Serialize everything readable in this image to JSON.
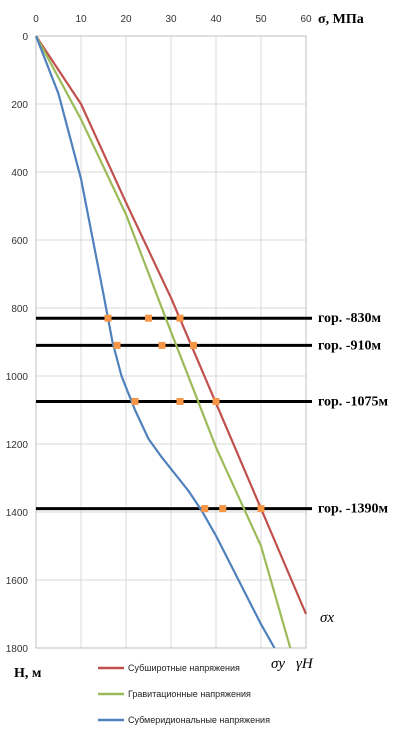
{
  "chart_data": {
    "type": "line",
    "x_axis": {
      "label": "σ, МПа",
      "range": [
        0,
        60
      ],
      "ticks": [
        0,
        10,
        20,
        30,
        40,
        50,
        60
      ],
      "position": "top"
    },
    "y_axis": {
      "label": "H, м",
      "range": [
        0,
        1800
      ],
      "inverted": true,
      "ticks": [
        0,
        200,
        400,
        600,
        800,
        1000,
        1200,
        1400,
        1600,
        1800
      ]
    },
    "grid": true,
    "series": [
      {
        "name": "Субширотные напряжения",
        "curve_label": "σx",
        "color": "#c0504d",
        "points": [
          [
            0,
            0
          ],
          [
            10,
            200
          ],
          [
            20,
            490
          ],
          [
            30,
            770
          ],
          [
            40,
            1080
          ],
          [
            50,
            1390
          ],
          [
            60,
            1700
          ]
        ]
      },
      {
        "name": "Гравитационные напряжения",
        "curve_label": "γH",
        "color": "#9bbb59",
        "points": [
          [
            0,
            0
          ],
          [
            10,
            245
          ],
          [
            20,
            525
          ],
          [
            30,
            870
          ],
          [
            40,
            1210
          ],
          [
            50,
            1500
          ],
          [
            56.5,
            1800
          ]
        ]
      },
      {
        "name": "Субмеридиональные напряжения",
        "curve_label": "σy",
        "color": "#4f81bd",
        "points": [
          [
            0,
            0
          ],
          [
            5,
            170
          ],
          [
            10,
            420
          ],
          [
            15,
            760
          ],
          [
            17,
            900
          ],
          [
            19,
            1000
          ],
          [
            22,
            1100
          ],
          [
            25,
            1185
          ],
          [
            28,
            1240
          ],
          [
            31,
            1290
          ],
          [
            34,
            1340
          ],
          [
            37,
            1400
          ],
          [
            40,
            1470
          ],
          [
            45,
            1600
          ],
          [
            50,
            1730
          ],
          [
            53,
            1800
          ]
        ]
      }
    ],
    "horizons": [
      {
        "label": "гор. -830м",
        "depth": 830,
        "markers": [
          16,
          25,
          32
        ]
      },
      {
        "label": "гор. -910м",
        "depth": 910,
        "markers": [
          18,
          28,
          35
        ]
      },
      {
        "label": "гор. -1075м",
        "depth": 1075,
        "markers": [
          22,
          32,
          40
        ]
      },
      {
        "label": "гор. -1390м",
        "depth": 1390,
        "markers": [
          37.5,
          41.5,
          50
        ]
      }
    ],
    "marker_color": "#f79646",
    "legend_position": "bottom"
  }
}
